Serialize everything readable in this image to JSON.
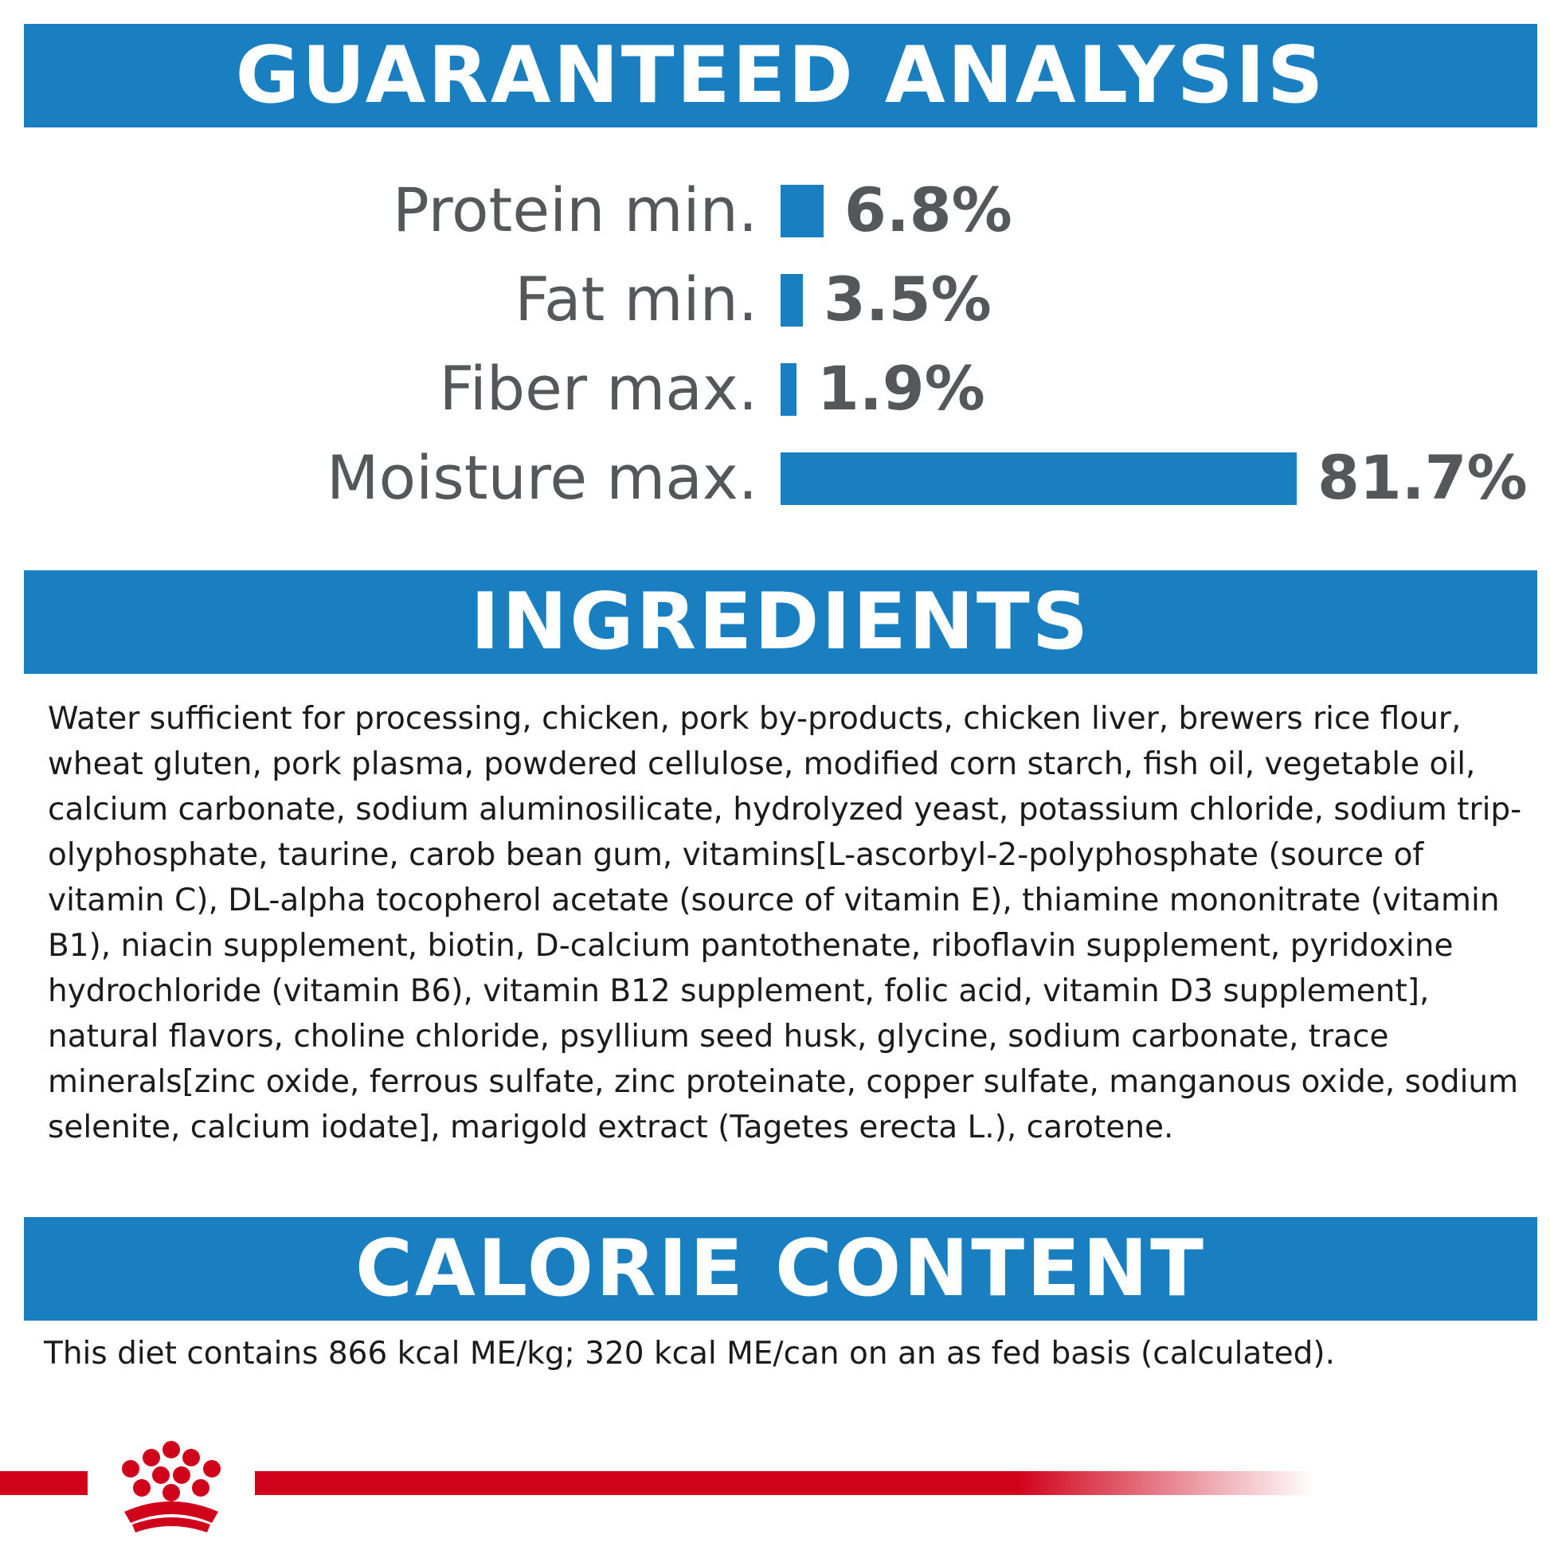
{
  "sections": {
    "guaranteed_analysis": {
      "title": "GUARANTEED ANALYSIS"
    },
    "ingredients": {
      "title": "INGREDIENTS"
    },
    "calorie_content": {
      "title": "CALORIE CONTENT"
    }
  },
  "analysis": [
    {
      "label": "Protein min.",
      "value": "6.8%",
      "percent": 6.8
    },
    {
      "label": "Fat min.",
      "value": "3.5%",
      "percent": 3.5
    },
    {
      "label": "Fiber max.",
      "value": "1.9%",
      "percent": 1.9
    },
    {
      "label": "Moisture max.",
      "value": "81.7%",
      "percent": 81.7
    }
  ],
  "ingredients_text": "Water sufficient for processing, chicken, pork by-products, chicken liver, brewers rice flour, wheat gluten, pork plasma, powdered cellulose, modified corn starch, fish oil, vegetable oil, calcium carbonate, sodium aluminosilicate, hydrolyzed yeast, potassium chloride, sodium trip-olyphosphate, taurine, carob bean gum, vitamins[L-ascorbyl-2-polyphosphate (source of vitamin C), DL-alpha tocopherol acetate (source of vitamin E), thiamine mononitrate (vitamin B1), niacin supplement, biotin, D-calcium pantothenate, riboflavin supplement, pyridoxine hydrochloride (vitamin B6), vitamin B12 supplement, folic acid, vitamin D3 supplement], natural flavors, choline chloride, psyllium seed husk, glycine, sodium carbonate, trace minerals[zinc oxide, ferrous sulfate, zinc proteinate, copper sulfate, manganous oxide, sodium selenite, calcium iodate], marigold extract (Tagetes erecta L.), carotene.",
  "calorie_text": "This diet contains 866 kcal ME/kg; 320 kcal ME/can on an as fed basis (calculated).",
  "colors": {
    "accent_blue": "#1a7fc1",
    "label_gray": "#555759",
    "brand_red": "#d0021b"
  },
  "icons": {
    "brand_logo": "crown-logo-icon"
  }
}
